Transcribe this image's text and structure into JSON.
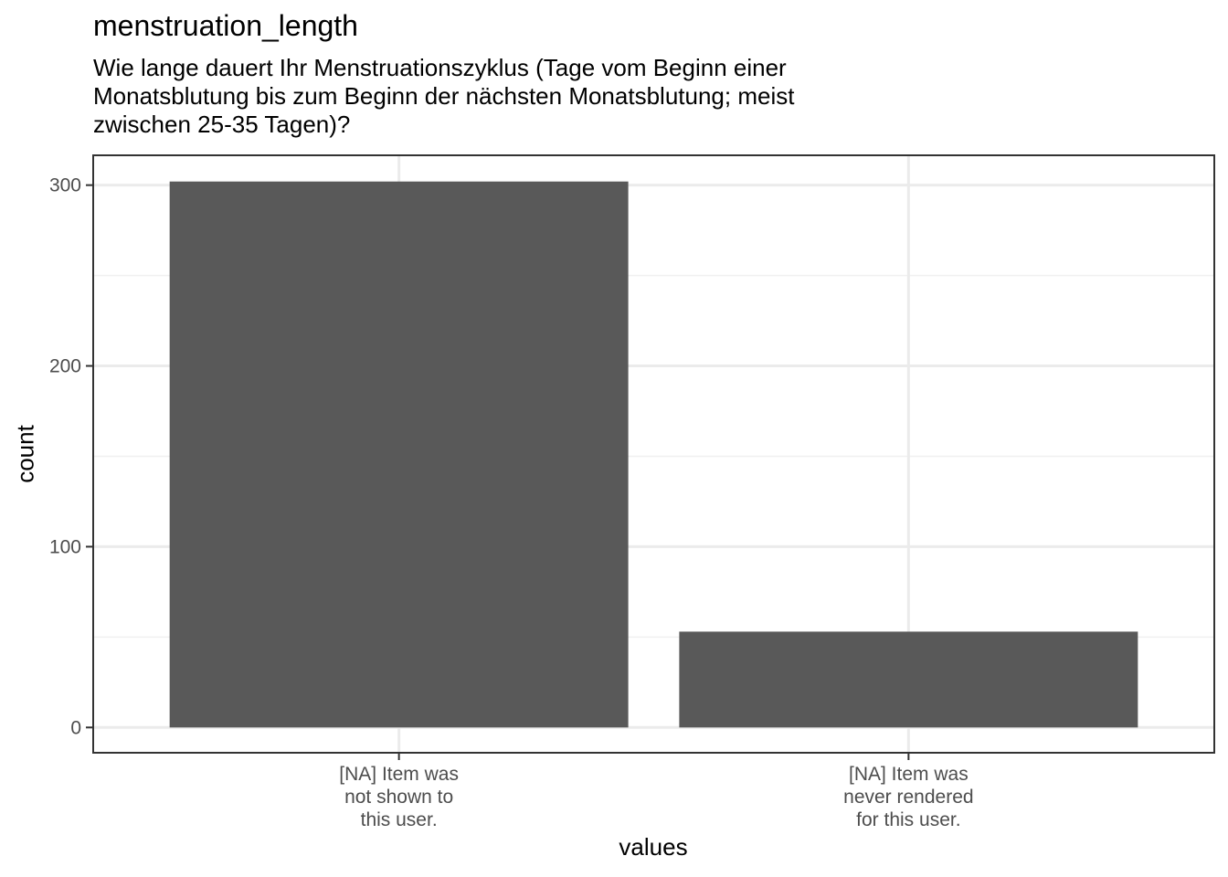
{
  "chart_data": {
    "type": "bar",
    "title": "menstruation_length",
    "subtitle_lines": [
      "Wie lange dauert Ihr Menstruationszyklus (Tage vom Beginn einer",
      "Monatsblutung bis zum Beginn der nächsten Monatsblutung; meist",
      "zwischen 25-35 Tagen)?"
    ],
    "xlabel": "values",
    "ylabel": "count",
    "categories": [
      [
        "[NA] Item was",
        "not shown to",
        "this user."
      ],
      [
        "[NA] Item was",
        "never rendered",
        "for this user."
      ]
    ],
    "values": [
      302,
      53
    ],
    "ylim": [
      -14,
      316.5
    ],
    "yticks": [
      0,
      100,
      200,
      300
    ],
    "grid": true,
    "bar_color": "#595959"
  }
}
